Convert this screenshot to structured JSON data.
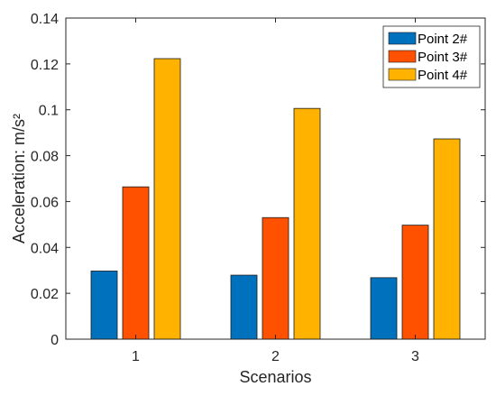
{
  "chart_data": {
    "type": "bar",
    "categories": [
      "1",
      "2",
      "3"
    ],
    "series": [
      {
        "name": "Point 2#",
        "color": "#0072BD",
        "values": [
          0.0297,
          0.0279,
          0.0268
        ]
      },
      {
        "name": "Point 3#",
        "color": "#FF5100",
        "values": [
          0.0664,
          0.053,
          0.0497
        ]
      },
      {
        "name": "Point 4#",
        "color": "#FFB300",
        "values": [
          0.1223,
          0.1006,
          0.0873
        ]
      }
    ],
    "xlabel": "Scenarios",
    "ylabel": "Acceleration: m/s²",
    "ylim": [
      0,
      0.14
    ],
    "yticks": [
      "0",
      "0.02",
      "0.04",
      "0.06",
      "0.08",
      "0.1",
      "0.12",
      "0.14"
    ],
    "grid": false,
    "legend_position": "top-right"
  }
}
